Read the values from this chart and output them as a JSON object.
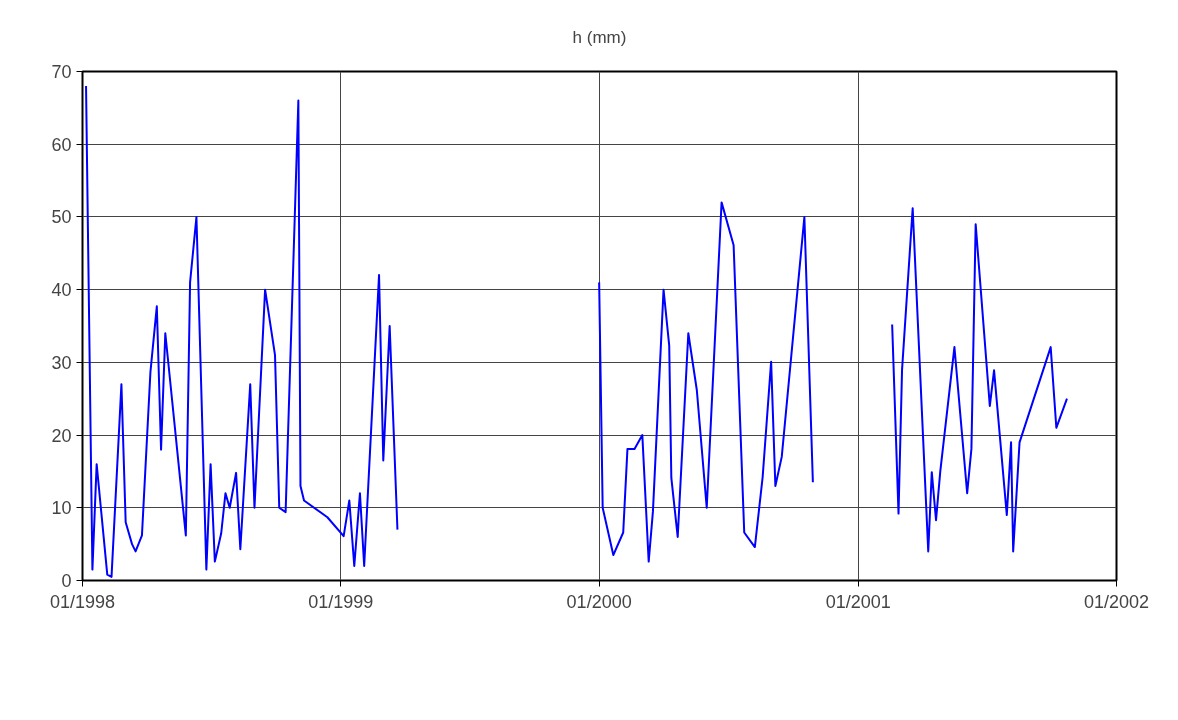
{
  "chart_data": {
    "type": "line",
    "title": "h (mm)",
    "x": [
      "1998-01-06",
      "1998-01-15",
      "1998-01-21",
      "1998-02-05",
      "1998-02-11",
      "1998-02-25",
      "1998-03-03",
      "1998-03-12",
      "1998-03-17",
      "1998-03-26",
      "1998-04-07",
      "1998-04-16",
      "1998-04-22",
      "1998-04-28",
      "1998-05-27",
      "1998-06-02",
      "1998-06-11",
      "1998-06-25",
      "1998-07-01",
      "1998-07-07",
      "1998-07-16",
      "1998-07-22",
      "1998-07-28",
      "1998-08-06",
      "1998-08-12",
      "1998-08-26",
      "1998-09-01",
      "1998-09-16",
      "1998-09-30",
      "1998-10-06",
      "1998-10-15",
      "1998-11-02",
      "1998-11-05",
      "1998-11-10",
      "1998-12-13",
      "1999-01-05",
      "1999-01-13",
      "1999-01-20",
      "1999-01-28",
      "1999-02-03",
      "1999-02-24",
      "1999-03-02",
      "1999-03-11",
      "1999-03-22",
      "1999-08-01",
      "2000-01-01",
      "2000-01-06",
      "2000-01-21",
      "2000-02-04",
      "2000-02-10",
      "2000-02-20",
      "2000-03-02",
      "2000-03-11",
      "2000-03-17",
      "2000-04-01",
      "2000-04-09",
      "2000-04-12",
      "2000-04-21",
      "2000-05-06",
      "2000-05-18",
      "2000-06-01",
      "2000-06-22",
      "2000-07-09",
      "2000-07-24",
      "2000-08-08",
      "2000-08-19",
      "2000-08-31",
      "2000-09-06",
      "2000-09-15",
      "2000-10-17",
      "2000-10-29",
      "2001-01-15",
      "2001-02-18",
      "2001-02-27",
      "2001-03-04",
      "2001-03-19",
      "2001-04-10",
      "2001-04-15",
      "2001-04-21",
      "2001-04-27",
      "2001-05-17",
      "2001-06-04",
      "2001-06-10",
      "2001-06-16",
      "2001-07-06",
      "2001-07-12",
      "2001-07-30",
      "2001-08-05",
      "2001-08-08",
      "2001-08-17",
      "2001-09-30",
      "2001-10-08",
      "2001-10-23"
    ],
    "series": [
      {
        "color": "#0000ff",
        "values": [
          68,
          1.5,
          16,
          0.8,
          0.5,
          27,
          8,
          5,
          4,
          6.2,
          28.7,
          37.7,
          18,
          34,
          6.2,
          41,
          50,
          1.5,
          16,
          2.6,
          6.5,
          12,
          10,
          14.8,
          4.3,
          27,
          10,
          40,
          31,
          10,
          9.4,
          66,
          13,
          11,
          8.7,
          6.1,
          11,
          2,
          12,
          2,
          42,
          16.5,
          35,
          7,
          null,
          41,
          10,
          3.5,
          6.6,
          18.1,
          18.1,
          20,
          2.6,
          9.5,
          40,
          32.3,
          14.1,
          6,
          34,
          26.2,
          10,
          52,
          46.1,
          6.6,
          4.6,
          14.2,
          30.1,
          13,
          17,
          50,
          13.5,
          null,
          35.2,
          9.2,
          29,
          51.2,
          4,
          14.9,
          8.3,
          15,
          32.1,
          12,
          18.1,
          49,
          24,
          28.9,
          9,
          19,
          4,
          19,
          32.1,
          21,
          25
        ]
      }
    ],
    "xlim": [
      "1998-01-01",
      "2002-01-01"
    ],
    "xticks": [
      {
        "value": "1998-01-01",
        "label": "01/1998"
      },
      {
        "value": "1999-01-01",
        "label": "01/1999"
      },
      {
        "value": "2000-01-01",
        "label": "01/2000"
      },
      {
        "value": "2001-01-01",
        "label": "01/2001"
      },
      {
        "value": "2002-01-01",
        "label": "01/2002"
      }
    ],
    "ylim": [
      0,
      70
    ],
    "yticks": [
      0,
      10,
      20,
      30,
      40,
      50,
      60,
      70
    ],
    "grid": true,
    "line_style": "solid"
  }
}
